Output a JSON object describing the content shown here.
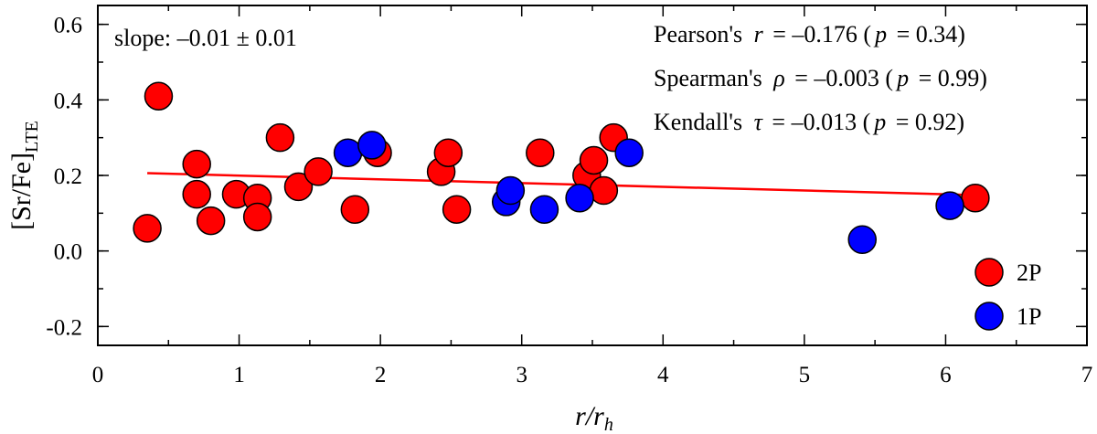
{
  "chart_data": {
    "type": "scatter",
    "xlim": [
      0,
      7
    ],
    "ylim": [
      -0.25,
      0.65
    ],
    "x_ticks": [
      0,
      1,
      2,
      3,
      4,
      5,
      6,
      7
    ],
    "x_tick_labels": [
      "0",
      "1",
      "2",
      "3",
      "4",
      "5",
      "6",
      "7"
    ],
    "y_ticks": [
      -0.2,
      0.0,
      0.2,
      0.4,
      0.6
    ],
    "y_tick_labels": [
      "-0.2",
      "0.0",
      "0.2",
      "0.4",
      "0.6"
    ],
    "xlabel": {
      "main": "r/r",
      "sub": "h"
    },
    "ylabel": {
      "main": "[Sr/Fe]",
      "sub": "LTE"
    },
    "series": [
      {
        "name": "2P",
        "color": "#ff0000",
        "points": [
          [
            0.35,
            0.06
          ],
          [
            0.43,
            0.41
          ],
          [
            0.7,
            0.23
          ],
          [
            0.7,
            0.15
          ],
          [
            0.8,
            0.08
          ],
          [
            0.98,
            0.15
          ],
          [
            1.13,
            0.14
          ],
          [
            1.13,
            0.09
          ],
          [
            1.29,
            0.3
          ],
          [
            1.42,
            0.17
          ],
          [
            1.56,
            0.21
          ],
          [
            1.82,
            0.11
          ],
          [
            1.98,
            0.26
          ],
          [
            2.43,
            0.21
          ],
          [
            2.48,
            0.26
          ],
          [
            2.54,
            0.11
          ],
          [
            3.13,
            0.26
          ],
          [
            3.46,
            0.2
          ],
          [
            3.51,
            0.24
          ],
          [
            3.58,
            0.16
          ],
          [
            3.65,
            0.3
          ],
          [
            6.21,
            0.14
          ]
        ]
      },
      {
        "name": "1P",
        "color": "#0000ff",
        "points": [
          [
            1.77,
            0.26
          ],
          [
            1.94,
            0.28
          ],
          [
            2.89,
            0.13
          ],
          [
            2.92,
            0.16
          ],
          [
            3.16,
            0.11
          ],
          [
            3.41,
            0.14
          ],
          [
            3.76,
            0.26
          ],
          [
            5.41,
            0.03
          ],
          [
            6.03,
            0.12
          ]
        ]
      }
    ],
    "fit_line": {
      "x": [
        0.35,
        6.21
      ],
      "y": [
        0.206,
        0.148
      ],
      "color": "#ff0000"
    },
    "annotations": {
      "slope": "slope: –0.01 ± 0.01",
      "pearson": {
        "name": "Pearson's",
        "symbol": "r",
        "value": "= –0.176 (",
        "p_symbol": "p",
        "p_value": "= 0.34)"
      },
      "spearman": {
        "name": "Spearman's",
        "symbol": "ρ",
        "value": "= –0.003 (",
        "p_symbol": "p",
        "p_value": "= 0.99)"
      },
      "kendall": {
        "name": "Kendall's",
        "symbol": "τ",
        "value": "= –0.013 (",
        "p_symbol": "p",
        "p_value": "= 0.92)"
      }
    },
    "legend": {
      "position": "bottom-right",
      "entries": [
        "2P",
        "1P"
      ]
    }
  }
}
